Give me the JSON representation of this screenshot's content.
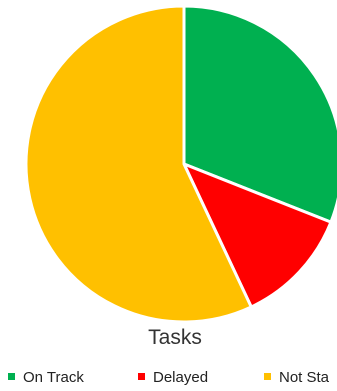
{
  "chart_data": {
    "type": "pie",
    "title": "Tasks",
    "categories": [
      "On Track",
      "Delayed",
      "Not Sta"
    ],
    "values": [
      31,
      12,
      57
    ],
    "colors": [
      "#00b050",
      "#ff0000",
      "#ffc000"
    ],
    "legend_position": "bottom",
    "start_angle_deg": 0,
    "slice_border_color": "#ffffff"
  }
}
